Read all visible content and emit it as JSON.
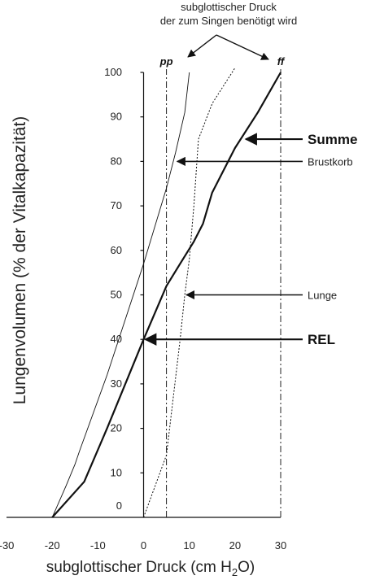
{
  "chart_data": {
    "type": "line",
    "top_caption": [
      "subglottischer Druck",
      "der zum Singen benötigt wird"
    ],
    "xlabel": "subglottischer Druck (cm H",
    "xlabel_sub": "2",
    "xlabel_end": "O)",
    "ylabel": "Lungenvolumen (% der Vitalkapazität)",
    "xlim": [
      -30,
      30
    ],
    "ylim": [
      0,
      100
    ],
    "x_ticks": [
      {
        "value": -30,
        "label": "-30"
      },
      {
        "value": -20,
        "label": "-20"
      },
      {
        "value": -10,
        "label": "-10"
      },
      {
        "value": 0,
        "label": "0"
      },
      {
        "value": 10,
        "label": "10"
      },
      {
        "value": 20,
        "label": "20"
      },
      {
        "value": 30,
        "label": "30"
      }
    ],
    "y_ticks": [
      {
        "value": 0,
        "label": "0"
      },
      {
        "value": 10,
        "label": "10"
      },
      {
        "value": 20,
        "label": "20"
      },
      {
        "value": 30,
        "label": "30"
      },
      {
        "value": 40,
        "label": "40"
      },
      {
        "value": 50,
        "label": "50"
      },
      {
        "value": 60,
        "label": "60"
      },
      {
        "value": 70,
        "label": "70"
      },
      {
        "value": 80,
        "label": "80"
      },
      {
        "value": 90,
        "label": "90"
      },
      {
        "value": 100,
        "label": "100"
      }
    ],
    "reference_lines": [
      {
        "key": "pp",
        "label": "pp",
        "x": 5
      },
      {
        "key": "ff",
        "label": "ff",
        "x": 30
      }
    ],
    "series": [
      {
        "key": "brustkorb",
        "style": "thin",
        "points": [
          [
            -20,
            0
          ],
          [
            -17,
            7
          ],
          [
            -15,
            12
          ],
          [
            -14,
            15
          ],
          [
            -8,
            32
          ],
          [
            0,
            57
          ],
          [
            5,
            74
          ],
          [
            7,
            82
          ],
          [
            9,
            91
          ],
          [
            10,
            100
          ]
        ]
      },
      {
        "key": "summe",
        "style": "thick",
        "points": [
          [
            -20,
            0
          ],
          [
            -13,
            8
          ],
          [
            -8,
            20
          ],
          [
            0,
            40
          ],
          [
            5,
            52
          ],
          [
            8,
            57
          ],
          [
            11,
            62
          ],
          [
            13,
            66
          ],
          [
            15,
            73
          ],
          [
            20,
            83
          ],
          [
            25,
            91
          ],
          [
            30,
            100
          ]
        ]
      },
      {
        "key": "lunge",
        "style": "dotted",
        "points": [
          [
            0,
            0
          ],
          [
            5,
            14
          ],
          [
            8,
            40
          ],
          [
            9,
            50
          ],
          [
            10,
            58
          ],
          [
            11,
            70
          ],
          [
            12,
            85
          ],
          [
            15,
            93
          ],
          [
            20,
            101
          ]
        ]
      }
    ],
    "annotations": [
      {
        "key": "summe",
        "label": "Summe",
        "style": "big",
        "target": [
          22,
          85
        ],
        "label_y": 85
      },
      {
        "key": "brustkorb",
        "label": "Brustkorb",
        "style": "small",
        "target": [
          7,
          80
        ],
        "label_y": 80
      },
      {
        "key": "lunge",
        "label": "Lunge",
        "style": "small",
        "target": [
          9,
          50
        ],
        "label_y": 50
      },
      {
        "key": "rel",
        "label": "REL",
        "style": "big",
        "target": [
          0,
          40
        ],
        "label_y": 40
      }
    ],
    "grid": false
  }
}
